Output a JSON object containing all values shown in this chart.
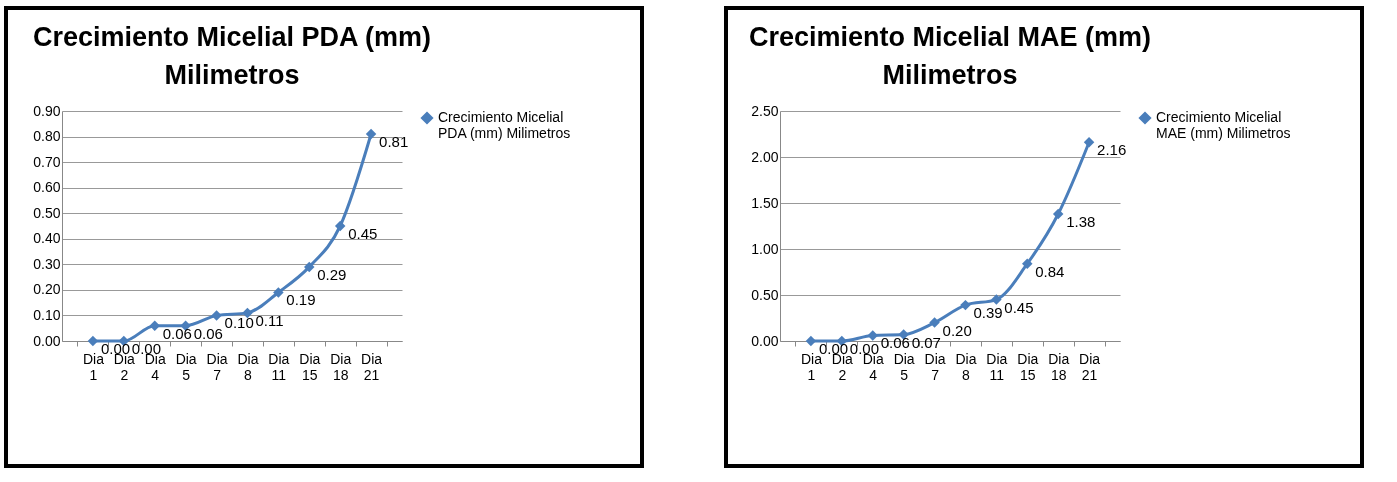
{
  "chart_data": [
    {
      "type": "line",
      "title": "Crecimiento Micelial  PDA (mm)\nMilimetros",
      "categories": [
        "Dia 1",
        "Dia 2",
        "Dia 4",
        "Dia 5",
        "Dia 7",
        "Dia 8",
        "Dia 11",
        "Dia 15",
        "Dia 18",
        "Dia 21"
      ],
      "series": [
        {
          "name": "Crecimiento Micelial PDA (mm) Milimetros",
          "color": "#4a7ebb",
          "values": [
            0,
            0,
            0.06,
            0.06,
            0.1,
            0.11,
            0.19,
            0.29,
            0.45,
            0.81
          ]
        }
      ],
      "ylim": [
        0,
        0.9
      ],
      "yticks": [
        {
          "value": 0,
          "label": "0.00"
        },
        {
          "value": 0.1,
          "label": "0.10"
        },
        {
          "value": 0.2,
          "label": "0.20"
        },
        {
          "value": 0.3,
          "label": "0.30"
        },
        {
          "value": 0.4,
          "label": "0.40"
        },
        {
          "value": 0.5,
          "label": "0.50"
        },
        {
          "value": 0.6,
          "label": "0.60"
        },
        {
          "value": 0.7,
          "label": "0.70"
        },
        {
          "value": 0.8,
          "label": "0.80"
        },
        {
          "value": 0.9,
          "label": "0.90"
        }
      ],
      "value_labels": [
        "0.00",
        "0.00",
        "0.06",
        "0.06",
        "0.10",
        "0.11",
        "0.19",
        "0.29",
        "0.45",
        "0.81"
      ],
      "grid": "y",
      "legend": "right",
      "marker": "diamond"
    },
    {
      "type": "line",
      "title": "Crecimiento Micelial MAE (mm)\nMilimetros",
      "categories": [
        "Dia 1",
        "Dia 2",
        "Dia 4",
        "Dia 5",
        "Dia 7",
        "Dia 8",
        "Dia 11",
        "Dia 15",
        "Dia 18",
        "Dia 21"
      ],
      "series": [
        {
          "name": "Crecimiento Micelial MAE (mm) Milimetros",
          "color": "#4a7ebb",
          "values": [
            0,
            0,
            0.06,
            0.07,
            0.2,
            0.39,
            0.45,
            0.84,
            1.38,
            2.16
          ]
        }
      ],
      "ylim": [
        0,
        2.5
      ],
      "yticks": [
        {
          "value": 0,
          "label": "0.00"
        },
        {
          "value": 0.5,
          "label": "0.50"
        },
        {
          "value": 1,
          "label": "1.00"
        },
        {
          "value": 1.5,
          "label": "1.50"
        },
        {
          "value": 2,
          "label": "2.00"
        },
        {
          "value": 2.5,
          "label": "2.50"
        }
      ],
      "value_labels": [
        "0.00",
        "0.00",
        "0.06",
        "0.07",
        "0.20",
        "0.39",
        "0.45",
        "0.84",
        "1.38",
        "2.16"
      ],
      "grid": "y",
      "legend": "right",
      "marker": "diamond"
    }
  ]
}
